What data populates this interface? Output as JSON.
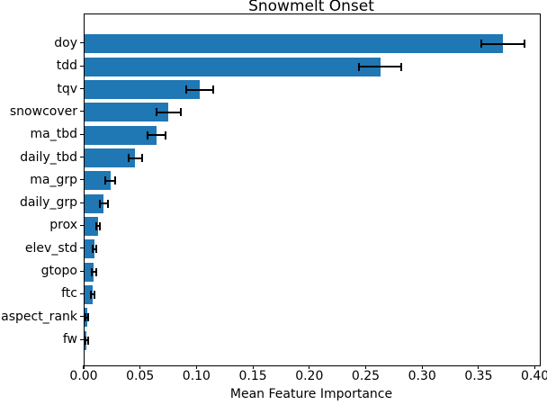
{
  "chart_data": {
    "type": "bar",
    "orientation": "horizontal",
    "title": "Snowmelt Onset",
    "xlabel": "Mean Feature Importance",
    "ylabel": "",
    "categories": [
      "doy",
      "tdd",
      "tqv",
      "snowcover",
      "ma_tbd",
      "daily_tbd",
      "ma_grp",
      "daily_grp",
      "prox",
      "elev_std",
      "gtopo",
      "ftc",
      "aspect_rank",
      "fw"
    ],
    "values": [
      0.371,
      0.262,
      0.102,
      0.0745,
      0.064,
      0.045,
      0.023,
      0.017,
      0.0122,
      0.0087,
      0.0083,
      0.007,
      0.002,
      0.0018
    ],
    "errors": [
      0.019,
      0.019,
      0.012,
      0.011,
      0.008,
      0.006,
      0.0045,
      0.0035,
      0.0017,
      0.0017,
      0.0017,
      0.0017,
      0.001,
      0.001
    ],
    "x_tick_values": [
      0,
      0.05,
      0.1,
      0.15,
      0.2,
      0.25,
      0.3,
      0.35,
      0.4
    ],
    "x_tick_labels": [
      "0.00",
      "0.05",
      "0.10",
      "0.15",
      "0.20",
      "0.25",
      "0.30",
      "0.35",
      "0.40"
    ],
    "xlim": [
      0,
      0.4035
    ],
    "bar_color": "#1f77b4",
    "error_color": "#000000",
    "grid": false,
    "legend": false
  }
}
